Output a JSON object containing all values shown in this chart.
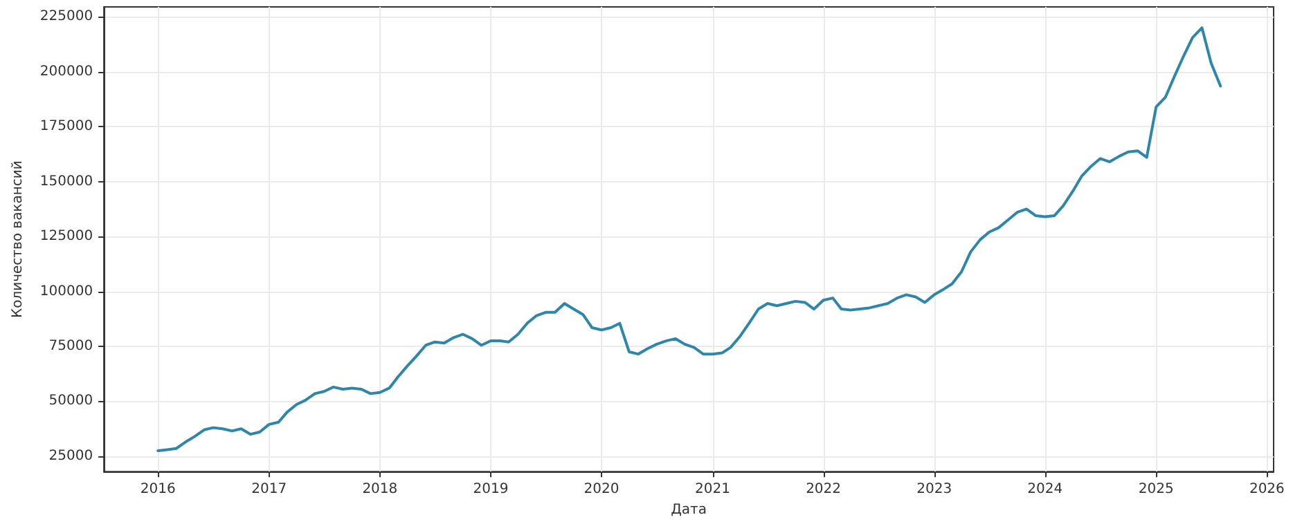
{
  "chart_data": {
    "type": "line",
    "xlabel": "Дата",
    "ylabel": "Количество вакансий",
    "x": [
      "2016-01",
      "2016-02",
      "2016-03",
      "2016-04",
      "2016-05",
      "2016-06",
      "2016-07",
      "2016-08",
      "2016-09",
      "2016-10",
      "2016-11",
      "2016-12",
      "2017-01",
      "2017-02",
      "2017-03",
      "2017-04",
      "2017-05",
      "2017-06",
      "2017-07",
      "2017-08",
      "2017-09",
      "2017-10",
      "2017-11",
      "2017-12",
      "2018-01",
      "2018-02",
      "2018-03",
      "2018-04",
      "2018-05",
      "2018-06",
      "2018-07",
      "2018-08",
      "2018-09",
      "2018-10",
      "2018-11",
      "2018-12",
      "2019-01",
      "2019-02",
      "2019-03",
      "2019-04",
      "2019-05",
      "2019-06",
      "2019-07",
      "2019-08",
      "2019-09",
      "2019-10",
      "2019-11",
      "2019-12",
      "2020-01",
      "2020-02",
      "2020-03",
      "2020-04",
      "2020-05",
      "2020-06",
      "2020-07",
      "2020-08",
      "2020-09",
      "2020-10",
      "2020-11",
      "2020-12",
      "2021-01",
      "2021-02",
      "2021-03",
      "2021-04",
      "2021-05",
      "2021-06",
      "2021-07",
      "2021-08",
      "2021-09",
      "2021-10",
      "2021-11",
      "2021-12",
      "2022-01",
      "2022-02",
      "2022-03",
      "2022-04",
      "2022-05",
      "2022-06",
      "2022-07",
      "2022-08",
      "2022-09",
      "2022-10",
      "2022-11",
      "2022-12",
      "2023-01",
      "2023-02",
      "2023-03",
      "2023-04",
      "2023-05",
      "2023-06",
      "2023-07",
      "2023-08",
      "2023-09",
      "2023-10",
      "2023-11",
      "2023-12",
      "2024-01",
      "2024-02",
      "2024-03",
      "2024-04",
      "2024-05",
      "2024-06",
      "2024-07",
      "2024-08",
      "2024-09",
      "2024-10",
      "2024-11",
      "2024-12",
      "2025-01",
      "2025-02",
      "2025-03",
      "2025-04",
      "2025-05",
      "2025-06",
      "2025-07",
      "2025-08"
    ],
    "series": [
      {
        "color": "#2e86ab",
        "values": [
          27500,
          28000,
          28500,
          31500,
          34000,
          37000,
          38000,
          37500,
          36500,
          37500,
          35000,
          36000,
          39500,
          40500,
          45000,
          48500,
          50500,
          53500,
          54500,
          56500,
          55500,
          56000,
          55500,
          53500,
          54000,
          56000,
          61000,
          66000,
          70500,
          75500,
          77000,
          76500,
          79000,
          80500,
          78500,
          75500,
          77500,
          77500,
          77000,
          80500,
          85500,
          89000,
          90500,
          90500,
          94500,
          92000,
          89500,
          83500,
          82500,
          83500,
          85500,
          72500,
          71500,
          74000,
          76000,
          77500,
          78500,
          76000,
          74500,
          71500,
          71500,
          72000,
          74500,
          79500,
          85500,
          92000,
          94500,
          93500,
          94500,
          95500,
          95000,
          92000,
          96000,
          97000,
          92000,
          91500,
          92000,
          92500,
          93500,
          94500,
          97000,
          98500,
          97500,
          95000,
          98500,
          101000,
          103500,
          109000,
          118000,
          123500,
          127000,
          129000,
          132500,
          136000,
          137500,
          134500,
          134000,
          134500,
          139000,
          145500,
          152500,
          157000,
          160500,
          159000,
          161500,
          163500,
          164000,
          161000,
          184000,
          188500,
          197500,
          207000,
          215500,
          220000,
          204000,
          193500
        ]
      }
    ],
    "xlim": [
      "2015-07-07",
      "2026-01-23"
    ],
    "xticks": [
      "2016",
      "2017",
      "2018",
      "2019",
      "2020",
      "2021",
      "2022",
      "2023",
      "2024",
      "2025",
      "2026"
    ],
    "ylim": [
      18000,
      229500
    ],
    "yticks": [
      25000,
      50000,
      75000,
      100000,
      125000,
      150000,
      175000,
      200000,
      225000
    ],
    "grid": true,
    "marker": "none",
    "line_style": "solid"
  }
}
